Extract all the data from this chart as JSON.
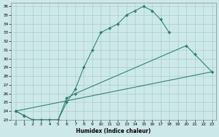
{
  "xlabel": "Humidex (Indice chaleur)",
  "bg_color": "#cce8e8",
  "line_color": "#2e7d6e",
  "grid_color": "#aacccc",
  "xlim": [
    -0.5,
    23.5
  ],
  "ylim": [
    23,
    36.4
  ],
  "xticks": [
    0,
    1,
    2,
    3,
    4,
    5,
    6,
    7,
    8,
    9,
    10,
    11,
    12,
    13,
    14,
    15,
    16,
    17,
    18,
    19,
    20,
    21,
    22,
    23
  ],
  "yticks": [
    23,
    24,
    25,
    26,
    27,
    28,
    29,
    30,
    31,
    32,
    33,
    34,
    35,
    36
  ],
  "line1_x": [
    0,
    1,
    2,
    3,
    4,
    5,
    6,
    7,
    8,
    9,
    10,
    11,
    12,
    13,
    14,
    15,
    16,
    17,
    18
  ],
  "line1_y": [
    24,
    23.5,
    23,
    23,
    23,
    23,
    25,
    26.5,
    29,
    31,
    33,
    33.5,
    34,
    35,
    35.5,
    36,
    35.5,
    34.5,
    33
  ],
  "line2_x": [
    0,
    1,
    2,
    3,
    4,
    5,
    6,
    7,
    20,
    21,
    23
  ],
  "line2_y": [
    24,
    23.5,
    23,
    23,
    23,
    23,
    25.5,
    26,
    31.5,
    30.5,
    28.5
  ],
  "line3_x": [
    0,
    23
  ],
  "line3_y": [
    24,
    28.5
  ]
}
